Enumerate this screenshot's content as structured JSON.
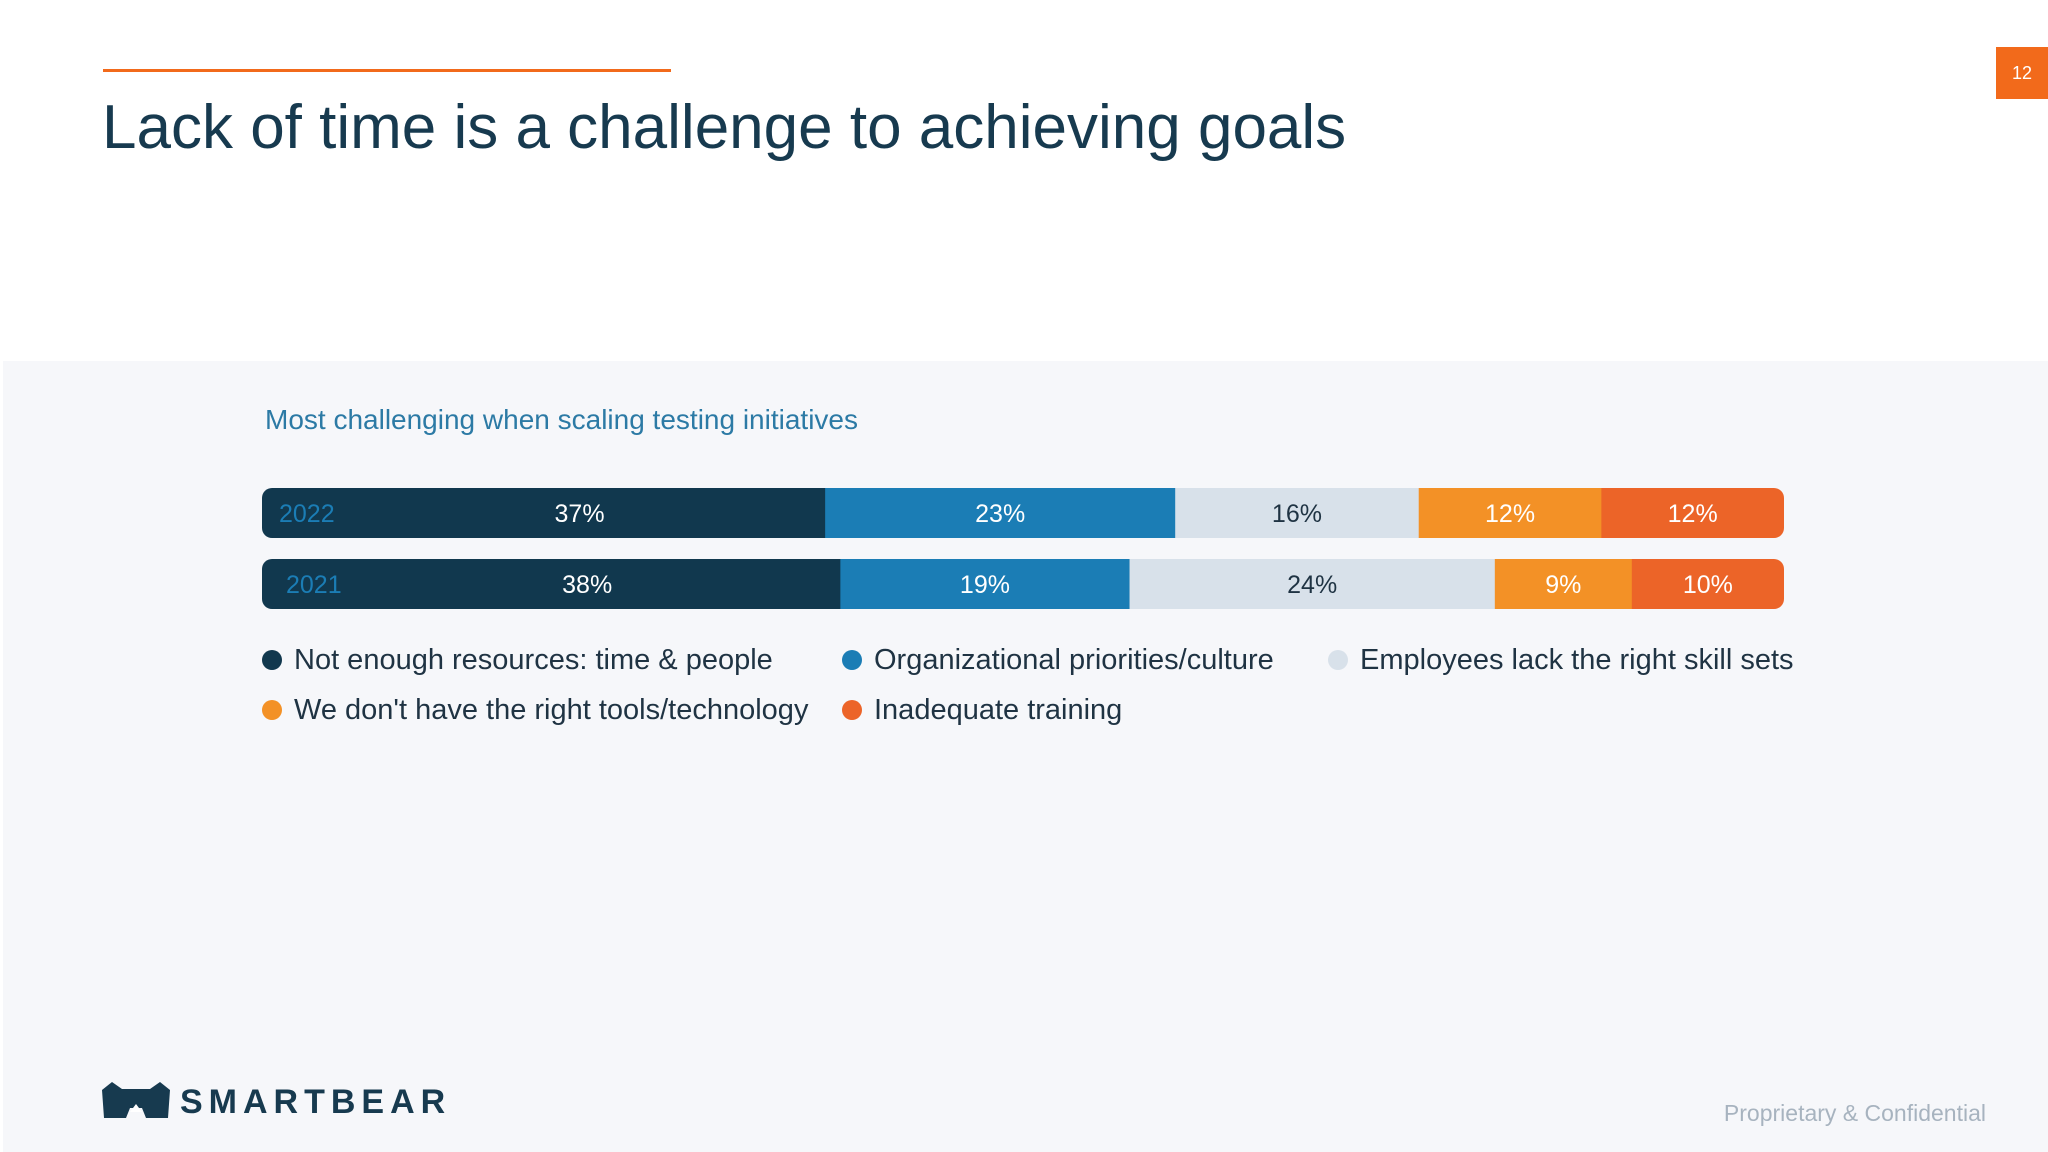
{
  "slide": {
    "title": "Lack of time is a challenge to achieving goals",
    "page_number": "12",
    "footer": "Proprietary & Confidential",
    "logo_text": "SMARTBEAR"
  },
  "colors": {
    "accent": "#f26a1b",
    "title": "#173a4f",
    "panel_bg": "#f6f7fa"
  },
  "chart_data": {
    "type": "bar",
    "orientation": "horizontal",
    "stacked": "100%",
    "title": "Most challenging  when scaling testing initiatives",
    "categories": [
      "2022",
      "2021"
    ],
    "series": [
      {
        "name": "Not enough resources: time & people",
        "values": [
          37,
          38
        ],
        "labels": [
          "37%",
          "38%"
        ],
        "color": "#11384e",
        "label_color": "#ffffff"
      },
      {
        "name": "Organizational priorities/culture",
        "values": [
          23,
          19
        ],
        "labels": [
          "23%",
          "19%"
        ],
        "color": "#1b7db5",
        "label_color": "#ffffff"
      },
      {
        "name": "Employees lack the right skill sets",
        "values": [
          16,
          24
        ],
        "labels": [
          "16%",
          "24%"
        ],
        "color": "#d8e1ea",
        "label_color": "#1f3343"
      },
      {
        "name": "We don't have the right tools/technology",
        "values": [
          12,
          9
        ],
        "labels": [
          "12%",
          "9%"
        ],
        "color": "#f39126",
        "label_color": "#ffffff"
      },
      {
        "name": "Inadequate training",
        "values": [
          12,
          10
        ],
        "labels": [
          "12%",
          "10%"
        ],
        "color": "#ec6428",
        "label_color": "#ffffff"
      }
    ],
    "category_label_color": "#1b7db5",
    "legend_position": "bottom",
    "grid": false
  }
}
